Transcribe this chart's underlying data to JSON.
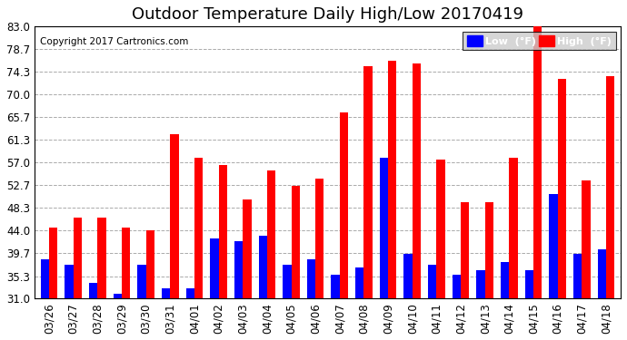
{
  "title": "Outdoor Temperature Daily High/Low 20170419",
  "copyright": "Copyright 2017 Cartronics.com",
  "legend_low": "Low  (°F)",
  "legend_high": "High  (°F)",
  "categories": [
    "03/26",
    "03/27",
    "03/28",
    "03/29",
    "03/30",
    "03/31",
    "04/01",
    "04/02",
    "04/03",
    "04/04",
    "04/05",
    "04/06",
    "04/07",
    "04/08",
    "04/09",
    "04/10",
    "04/11",
    "04/12",
    "04/13",
    "04/14",
    "04/15",
    "04/16",
    "04/17",
    "04/18"
  ],
  "high": [
    44.5,
    46.5,
    46.5,
    44.5,
    44.0,
    62.5,
    58.0,
    56.5,
    50.0,
    55.5,
    52.5,
    54.0,
    66.5,
    75.5,
    76.5,
    76.0,
    57.5,
    49.5,
    49.5,
    58.0,
    83.0,
    73.0,
    53.5,
    73.5
  ],
  "low": [
    38.5,
    37.5,
    34.0,
    32.0,
    37.5,
    33.0,
    33.0,
    42.5,
    42.0,
    43.0,
    37.5,
    38.5,
    35.5,
    37.0,
    58.0,
    39.5,
    37.5,
    35.5,
    36.5,
    38.0,
    36.5,
    51.0,
    39.5,
    40.5
  ],
  "ylim_min": 31.0,
  "ylim_max": 83.0,
  "yticks": [
    31.0,
    35.3,
    39.7,
    44.0,
    48.3,
    52.7,
    57.0,
    61.3,
    65.7,
    70.0,
    74.3,
    78.7,
    83.0
  ],
  "bg_color": "#ffffff",
  "plot_bg_color": "#ffffff",
  "low_color": "#0000ff",
  "high_color": "#ff0000",
  "grid_color": "#aaaaaa",
  "title_fontsize": 13,
  "tick_fontsize": 8.5,
  "bar_width": 0.35
}
